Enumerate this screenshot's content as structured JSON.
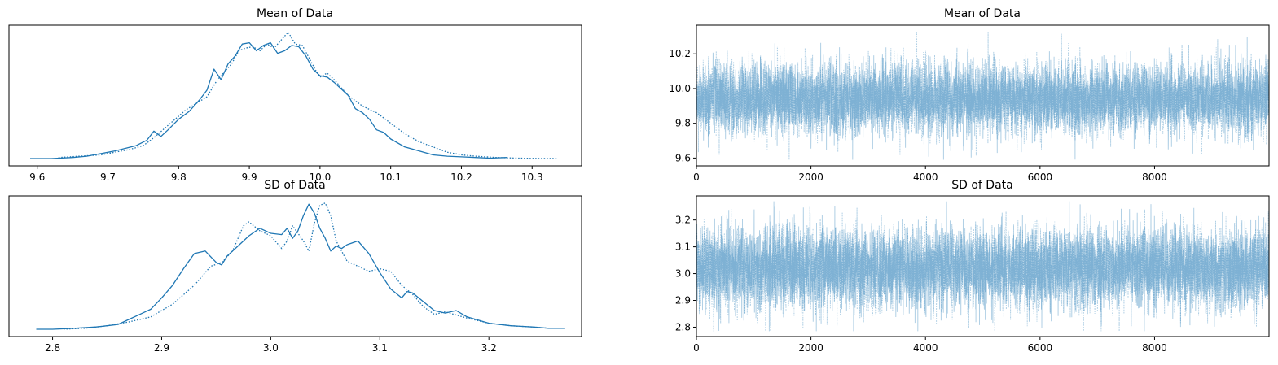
{
  "chart_data": [
    {
      "type": "line",
      "panel": "density",
      "title": "Mean of Data",
      "xlim": [
        9.56,
        10.37
      ],
      "xticks": [
        9.6,
        9.7,
        9.8,
        9.9,
        10.0,
        10.1,
        10.2,
        10.3
      ],
      "xtick_labels": [
        "9.6",
        "9.7",
        "9.8",
        "9.9",
        "10.0",
        "10.1",
        "10.2",
        "10.3"
      ],
      "y_axis_visible": false,
      "color": "#1f77b4",
      "series": [
        {
          "style": "solid",
          "x": [
            9.59,
            9.62,
            9.65,
            9.67,
            9.69,
            9.71,
            9.725,
            9.74,
            9.755,
            9.765,
            9.775,
            9.785,
            9.8,
            9.815,
            9.83,
            9.84,
            9.85,
            9.86,
            9.87,
            9.88,
            9.89,
            9.9,
            9.91,
            9.92,
            9.93,
            9.94,
            9.95,
            9.96,
            9.97,
            9.98,
            9.99,
            10.0,
            10.01,
            10.02,
            10.03,
            10.04,
            10.05,
            10.06,
            10.07,
            10.08,
            10.09,
            10.1,
            10.12,
            10.14,
            10.16,
            10.18,
            10.2,
            10.22,
            10.24,
            10.265
          ],
          "y": [
            0.002,
            0.002,
            0.01,
            0.02,
            0.04,
            0.06,
            0.08,
            0.1,
            0.14,
            0.21,
            0.17,
            0.22,
            0.3,
            0.36,
            0.45,
            0.52,
            0.68,
            0.6,
            0.72,
            0.78,
            0.87,
            0.88,
            0.82,
            0.86,
            0.88,
            0.8,
            0.82,
            0.86,
            0.85,
            0.78,
            0.68,
            0.63,
            0.62,
            0.58,
            0.53,
            0.48,
            0.38,
            0.35,
            0.3,
            0.22,
            0.2,
            0.15,
            0.09,
            0.06,
            0.03,
            0.02,
            0.015,
            0.01,
            0.005,
            0.01
          ]
        },
        {
          "style": "dotted",
          "x": [
            9.63,
            9.66,
            9.69,
            9.71,
            9.73,
            9.75,
            9.765,
            9.78,
            9.795,
            9.81,
            9.825,
            9.84,
            9.855,
            9.865,
            9.875,
            9.885,
            9.895,
            9.905,
            9.915,
            9.925,
            9.935,
            9.945,
            9.955,
            9.965,
            9.975,
            9.985,
            9.995,
            10.0,
            10.01,
            10.02,
            10.03,
            10.04,
            10.06,
            10.08,
            10.1,
            10.12,
            10.14,
            10.16,
            10.18,
            10.2,
            10.22,
            10.25,
            10.28,
            10.31,
            10.335
          ],
          "y": [
            0.01,
            0.02,
            0.03,
            0.05,
            0.07,
            0.1,
            0.16,
            0.23,
            0.3,
            0.37,
            0.42,
            0.47,
            0.6,
            0.66,
            0.72,
            0.82,
            0.84,
            0.85,
            0.82,
            0.87,
            0.84,
            0.9,
            0.96,
            0.87,
            0.86,
            0.76,
            0.66,
            0.62,
            0.65,
            0.6,
            0.54,
            0.48,
            0.4,
            0.35,
            0.27,
            0.19,
            0.13,
            0.09,
            0.05,
            0.03,
            0.02,
            0.01,
            0.005,
            0.003,
            0.003
          ]
        }
      ]
    },
    {
      "type": "line",
      "panel": "trace",
      "title": "Mean of Data",
      "xlim": [
        0,
        9999
      ],
      "ylim": [
        9.555,
        10.365
      ],
      "xticks": [
        0,
        2000,
        4000,
        6000,
        8000
      ],
      "xtick_labels": [
        "0",
        "2000",
        "4000",
        "6000",
        "8000"
      ],
      "yticks": [
        9.6,
        9.8,
        10.0,
        10.2
      ],
      "ytick_labels": [
        "9.6",
        "9.8",
        "10.0",
        "10.2"
      ],
      "color": "#1f77b4",
      "alpha": 0.35,
      "n_draws": 10000,
      "center": 9.94,
      "spread": 0.1,
      "range": [
        9.59,
        10.33
      ],
      "series": [
        {
          "style": "solid"
        },
        {
          "style": "dotted"
        }
      ]
    },
    {
      "type": "line",
      "panel": "density",
      "title": "SD of Data",
      "xlim": [
        2.76,
        3.285
      ],
      "xticks": [
        2.8,
        2.9,
        3.0,
        3.1,
        3.2
      ],
      "xtick_labels": [
        "2.8",
        "2.9",
        "3.0",
        "3.1",
        "3.2"
      ],
      "y_axis_visible": false,
      "color": "#1f77b4",
      "series": [
        {
          "style": "solid",
          "x": [
            2.785,
            2.8,
            2.82,
            2.84,
            2.85,
            2.86,
            2.87,
            2.88,
            2.89,
            2.9,
            2.91,
            2.92,
            2.93,
            2.94,
            2.95,
            2.955,
            2.96,
            2.97,
            2.975,
            2.98,
            2.99,
            3.0,
            3.01,
            3.015,
            3.02,
            3.025,
            3.03,
            3.035,
            3.04,
            3.045,
            3.05,
            3.055,
            3.06,
            3.065,
            3.07,
            3.08,
            3.09,
            3.1,
            3.11,
            3.12,
            3.125,
            3.13,
            3.14,
            3.15,
            3.16,
            3.17,
            3.18,
            3.2,
            3.22,
            3.24,
            3.255,
            3.27
          ],
          "y": [
            0.002,
            0.002,
            0.01,
            0.02,
            0.03,
            0.04,
            0.08,
            0.12,
            0.16,
            0.25,
            0.35,
            0.48,
            0.6,
            0.62,
            0.53,
            0.51,
            0.58,
            0.66,
            0.7,
            0.74,
            0.8,
            0.76,
            0.75,
            0.8,
            0.72,
            0.78,
            0.9,
            0.99,
            0.92,
            0.8,
            0.72,
            0.62,
            0.66,
            0.64,
            0.67,
            0.7,
            0.6,
            0.45,
            0.32,
            0.25,
            0.3,
            0.29,
            0.22,
            0.15,
            0.13,
            0.15,
            0.1,
            0.05,
            0.03,
            0.02,
            0.01,
            0.01
          ]
        },
        {
          "style": "dotted",
          "x": [
            2.81,
            2.83,
            2.85,
            2.87,
            2.89,
            2.91,
            2.93,
            2.945,
            2.955,
            2.965,
            2.975,
            2.98,
            2.99,
            3.0,
            3.01,
            3.015,
            3.02,
            3.03,
            3.035,
            3.04,
            3.045,
            3.05,
            3.055,
            3.06,
            3.07,
            3.08,
            3.09,
            3.1,
            3.11,
            3.12,
            3.13,
            3.14,
            3.15,
            3.16,
            3.18,
            3.2,
            3.22,
            3.24,
            3.255
          ],
          "y": [
            0.003,
            0.01,
            0.03,
            0.06,
            0.1,
            0.2,
            0.35,
            0.5,
            0.53,
            0.62,
            0.82,
            0.85,
            0.78,
            0.74,
            0.64,
            0.7,
            0.82,
            0.7,
            0.62,
            0.84,
            0.98,
            1.0,
            0.9,
            0.7,
            0.54,
            0.5,
            0.46,
            0.48,
            0.46,
            0.35,
            0.28,
            0.18,
            0.12,
            0.14,
            0.09,
            0.05,
            0.03,
            0.02,
            0.01
          ]
        }
      ]
    },
    {
      "type": "line",
      "panel": "trace",
      "title": "SD of Data",
      "xlim": [
        0,
        9999
      ],
      "ylim": [
        2.765,
        3.29
      ],
      "xticks": [
        0,
        2000,
        4000,
        6000,
        8000
      ],
      "xtick_labels": [
        "0",
        "2000",
        "4000",
        "6000",
        "8000"
      ],
      "yticks": [
        2.8,
        2.9,
        3.0,
        3.1,
        3.2
      ],
      "ytick_labels": [
        "2.8",
        "2.9",
        "3.0",
        "3.1",
        "3.2"
      ],
      "color": "#1f77b4",
      "alpha": 0.35,
      "n_draws": 10000,
      "center": 3.02,
      "spread": 0.075,
      "range": [
        2.785,
        3.27
      ],
      "series": [
        {
          "style": "solid"
        },
        {
          "style": "dotted"
        }
      ]
    }
  ]
}
